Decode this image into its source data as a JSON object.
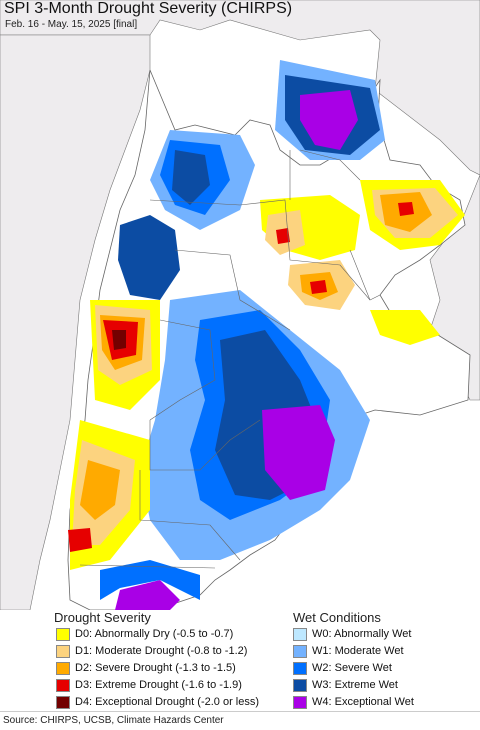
{
  "map": {
    "title": "SPI 3-Month Drought Severity (CHIRPS)",
    "subtitle": "Feb. 16 - May. 15, 2025 [final]"
  },
  "legend": {
    "drought": {
      "heading": "Drought Severity",
      "items": [
        {
          "label": "D0: Abnormally Dry (-0.5 to -0.7)",
          "color": "#ffff00"
        },
        {
          "label": "D1: Moderate Drought (-0.8 to -1.2)",
          "color": "#fcd37f"
        },
        {
          "label": "D2: Severe Drought (-1.3 to -1.5)",
          "color": "#ffaa00"
        },
        {
          "label": "D3: Extreme Drought (-1.6 to -1.9)",
          "color": "#e60000"
        },
        {
          "label": "D4: Exceptional Drought (-2.0 or less)",
          "color": "#730000"
        }
      ]
    },
    "wet": {
      "heading": "Wet Conditions",
      "items": [
        {
          "label": "W0: Abnormally Wet",
          "color": "#bee8ff"
        },
        {
          "label": "W1: Moderate Wet",
          "color": "#73b2ff"
        },
        {
          "label": "W2: Severe Wet",
          "color": "#0070ff"
        },
        {
          "label": "W3: Extreme Wet",
          "color": "#0c4ca3"
        },
        {
          "label": "W4: Exceptional Wet",
          "color": "#a900e6"
        }
      ]
    }
  },
  "source": "Source: CHIRPS, UCSB, Climate Hazards Center",
  "colors": {
    "background_land": "#f0eef0",
    "ocean": "#ffffff",
    "border": "#555555"
  }
}
